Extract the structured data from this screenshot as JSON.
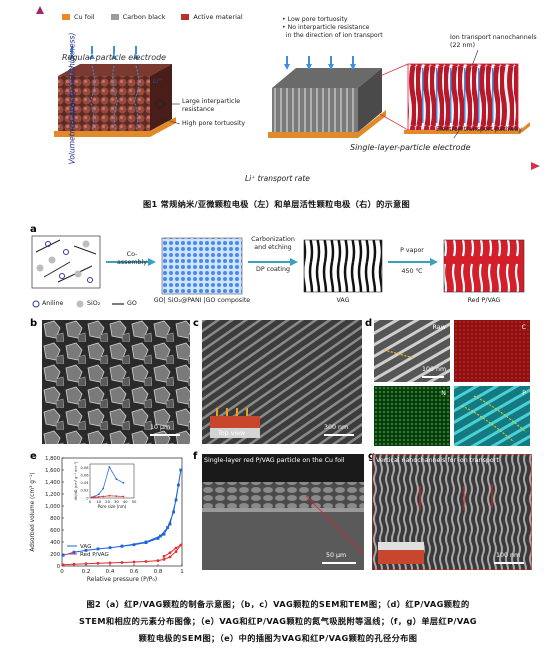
{
  "figure1": {
    "legend": [
      {
        "label": "Cu foil",
        "color": "#e98a25"
      },
      {
        "label": "Carbon black",
        "color": "#9c9c9c"
      },
      {
        "label": "Active material",
        "color": "#b8322a"
      }
    ],
    "y_axis_label": "Volumetric Capacity (∝1/thickness)",
    "x_axis_label": "Li⁺ transport rate",
    "regular_title": "Regular particle electrode",
    "li_label": "Li⁺",
    "large_resistance": "Large interparticle resistance",
    "high_tortuosity": "High pore tortuosity",
    "bullets": [
      "• Low pore tortuosity",
      "• No interparticle resistance",
      "  in the direction of ion transport"
    ],
    "nanochannels": "Ion transport nanochannels (22 nm)",
    "electron_pathway": "Electron transport pathway",
    "single_title": "Single-layer-particle electrode"
  },
  "caption1": "图1 常规纳米/亚微颗粒电极（左）和单层活性颗粒电极（右）的示意图",
  "figure2": {
    "panel_a": {
      "letter": "a",
      "step1": "Co-assembly",
      "step2_line1": "Carbonization",
      "step2_line2": "and etching",
      "step2_line3": "DP coating",
      "step3_line1": "P vapor",
      "step3_line2": "450 ℃",
      "label_composite": "GO| SiO₂@PANI |GO composite",
      "label_vag": "VAG",
      "label_red": "Red P/VAG",
      "legend_aniline": "Aniline",
      "legend_sio2": "SiO₂",
      "legend_go": "GO"
    },
    "panel_b": {
      "letter": "b",
      "scale": "10 μm"
    },
    "panel_c": {
      "letter": "c",
      "scale": "300 nm",
      "inset": "Top view"
    },
    "panel_d": {
      "letter": "d",
      "labels": [
        "Raw",
        "C",
        "N",
        "P"
      ],
      "scale": "100 nm"
    },
    "panel_e": {
      "letter": "e"
    },
    "panel_f": {
      "letter": "f",
      "title": "Single-layer red P/VAG particle on the Cu foil",
      "scale": "50 μm"
    },
    "panel_g": {
      "letter": "g",
      "title": "Vertical nanochannels for ion transport",
      "scale": "100 nm"
    }
  },
  "chart_data": {
    "type": "line",
    "xlabel": "Relative pressure (P/P₀)",
    "ylabel": "Adsorbed volume (cm³ g⁻¹)",
    "xlim": [
      0,
      1
    ],
    "ylim": [
      0,
      1800
    ],
    "xticks": [
      "0",
      "0.2",
      "0.4",
      "0.6",
      "0.8",
      "1"
    ],
    "yticks": [
      "0",
      "200",
      "400",
      "600",
      "800",
      "1,000",
      "1,200",
      "1,400",
      "1,600",
      "1,800"
    ],
    "legend_placement": "bottom-left",
    "series": [
      {
        "name": "VAG",
        "color": "#1e62d8",
        "x": [
          0.01,
          0.1,
          0.2,
          0.3,
          0.4,
          0.5,
          0.6,
          0.7,
          0.8,
          0.85,
          0.9,
          0.95,
          0.99,
          0.97,
          0.93,
          0.88,
          0.82,
          0.7,
          0.5
        ],
        "y": [
          180,
          230,
          260,
          285,
          305,
          330,
          355,
          390,
          460,
          530,
          700,
          1100,
          1600,
          1350,
          900,
          640,
          500,
          400,
          330
        ]
      },
      {
        "name": "Red P/VAG",
        "color": "#e03030",
        "x": [
          0.01,
          0.1,
          0.2,
          0.3,
          0.4,
          0.5,
          0.6,
          0.7,
          0.8,
          0.85,
          0.9,
          0.95,
          0.99,
          0.95,
          0.9,
          0.85
        ],
        "y": [
          20,
          30,
          38,
          45,
          52,
          58,
          66,
          75,
          90,
          110,
          150,
          240,
          350,
          300,
          220,
          160
        ]
      }
    ],
    "inset": {
      "xlabel": "Pore size (nm)",
      "ylabel": "dV/dD (cm³ g⁻¹ nm⁻¹)",
      "xticks": [
        "0",
        "10",
        "20",
        "30",
        "40",
        "50"
      ],
      "yticks": [
        "0",
        "0.02",
        "0.04",
        "0.06",
        "0.08"
      ],
      "series": [
        {
          "name": "VAG",
          "color": "#1e62d8",
          "x": [
            2,
            5,
            10,
            15,
            22,
            30,
            38
          ],
          "y": [
            0.002,
            0.004,
            0.01,
            0.025,
            0.082,
            0.05,
            0.04
          ]
        },
        {
          "name": "Red P/VAG",
          "color": "#e03030",
          "x": [
            2,
            5,
            10,
            15,
            22,
            30,
            38
          ],
          "y": [
            0.001,
            0.002,
            0.003,
            0.004,
            0.006,
            0.005,
            0.004
          ]
        }
      ]
    }
  },
  "caption2": [
    "图2（a）红P/VAG颗粒的制备示意图；（b，c）VAG颗粒的SEM和TEM图；（d）红P/VAG颗粒的",
    "STEM和相应的元素分布图像；（e）VAG和红P/VAG颗粒的氮气吸脱附等温线；（f，g）单层红P/VAG",
    "颗粒电极的SEM图；（e）中的插图为VAG和红P/VAG颗粒的孔径分布图"
  ]
}
